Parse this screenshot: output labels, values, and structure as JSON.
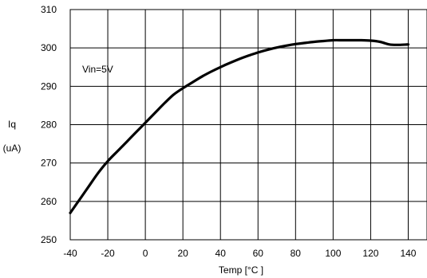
{
  "chart_data": {
    "type": "line",
    "title": "",
    "xlabel": "Temp [°C ]",
    "ylabel_line1": "Iq",
    "ylabel_line2": "(uA)",
    "xlim": [
      -40,
      150
    ],
    "ylim": [
      250,
      310
    ],
    "x_ticks": [
      -40,
      -20,
      0,
      20,
      40,
      60,
      80,
      100,
      120,
      140
    ],
    "y_ticks": [
      250,
      260,
      270,
      280,
      290,
      300,
      310
    ],
    "grid": true,
    "annotation": "Vin=5V",
    "series": [
      {
        "x": [
          -40,
          -35,
          -30,
          -25,
          -20,
          -15,
          -10,
          -5,
          0,
          5,
          10,
          15,
          20,
          25,
          30,
          35,
          40,
          45,
          50,
          55,
          60,
          65,
          70,
          75,
          80,
          85,
          90,
          95,
          100,
          105,
          110,
          115,
          120,
          125,
          130,
          135,
          140
        ],
        "values": [
          257,
          260.5,
          264,
          267.5,
          270.5,
          273,
          275.5,
          278,
          280.5,
          283,
          285.5,
          287.8,
          289.5,
          291,
          292.5,
          293.8,
          295,
          296.1,
          297.1,
          298,
          298.8,
          299.5,
          300.1,
          300.6,
          301,
          301.3,
          301.6,
          301.8,
          302,
          302,
          302,
          302,
          301.9,
          301.6,
          300.9,
          300.8,
          300.9
        ]
      }
    ]
  }
}
